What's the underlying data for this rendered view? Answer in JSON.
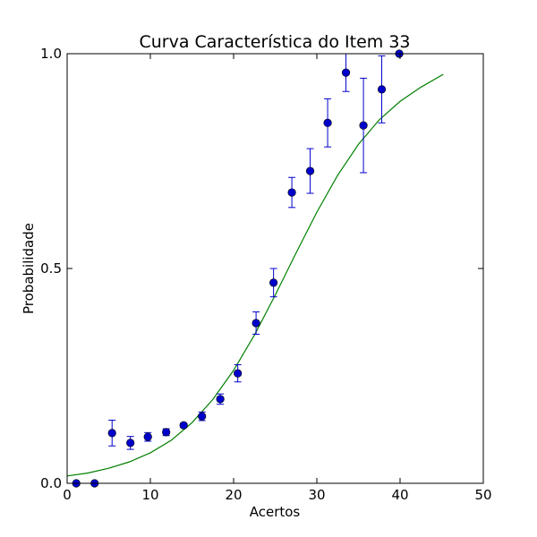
{
  "chart_data": {
    "type": "scatter",
    "title": "Curva Característica do Item 33",
    "xlabel": "Acertos",
    "ylabel": "Probabilidade",
    "xlim": [
      0,
      50
    ],
    "ylim": [
      0,
      1
    ],
    "x_ticks": [
      0,
      10,
      20,
      30,
      40,
      50
    ],
    "x_tick_labels": [
      "0",
      "10",
      "20",
      "30",
      "40",
      "50"
    ],
    "y_ticks": [
      0,
      0.5,
      1
    ],
    "y_tick_labels": [
      "0.0",
      "0.5",
      "1.0"
    ],
    "grid": false,
    "colors": {
      "points": "#0000cc",
      "errorbars": "#0000cc",
      "curve": "#008000",
      "axes": "#000000"
    },
    "series": [
      {
        "type": "scatter-errorbar",
        "points": [
          {
            "x": 1.1,
            "y": 0.0,
            "err": 0.0
          },
          {
            "x": 3.3,
            "y": 0.0,
            "err": 0.0
          },
          {
            "x": 5.4,
            "y": 0.117,
            "err": 0.03
          },
          {
            "x": 7.6,
            "y": 0.094,
            "err": 0.015
          },
          {
            "x": 9.7,
            "y": 0.108,
            "err": 0.01
          },
          {
            "x": 11.9,
            "y": 0.119,
            "err": 0.008
          },
          {
            "x": 14.0,
            "y": 0.135,
            "err": 0.005
          },
          {
            "x": 16.2,
            "y": 0.156,
            "err": 0.01
          },
          {
            "x": 18.4,
            "y": 0.196,
            "err": 0.012
          },
          {
            "x": 20.5,
            "y": 0.256,
            "err": 0.02
          },
          {
            "x": 22.7,
            "y": 0.373,
            "err": 0.026
          },
          {
            "x": 24.8,
            "y": 0.467,
            "err": 0.033
          },
          {
            "x": 27.0,
            "y": 0.677,
            "err": 0.035
          },
          {
            "x": 29.2,
            "y": 0.727,
            "err": 0.052
          },
          {
            "x": 31.3,
            "y": 0.839,
            "err": 0.056
          },
          {
            "x": 33.5,
            "y": 0.956,
            "err": 0.044
          },
          {
            "x": 35.6,
            "y": 0.833,
            "err": 0.11
          },
          {
            "x": 37.8,
            "y": 0.917,
            "err": 0.078
          },
          {
            "x": 39.9,
            "y": 1.0,
            "err": 0.0
          }
        ]
      },
      {
        "type": "line",
        "curve": {
          "x": [
            0,
            2.5,
            5,
            7.5,
            10,
            12.5,
            15,
            17.5,
            20,
            22.5,
            25,
            27.5,
            30,
            32.5,
            35,
            37.5,
            40,
            42.5,
            45.2
          ],
          "y": [
            0.017,
            0.024,
            0.035,
            0.05,
            0.071,
            0.1,
            0.141,
            0.195,
            0.263,
            0.345,
            0.438,
            0.536,
            0.631,
            0.717,
            0.789,
            0.846,
            0.889,
            0.922,
            0.952
          ]
        }
      }
    ]
  }
}
